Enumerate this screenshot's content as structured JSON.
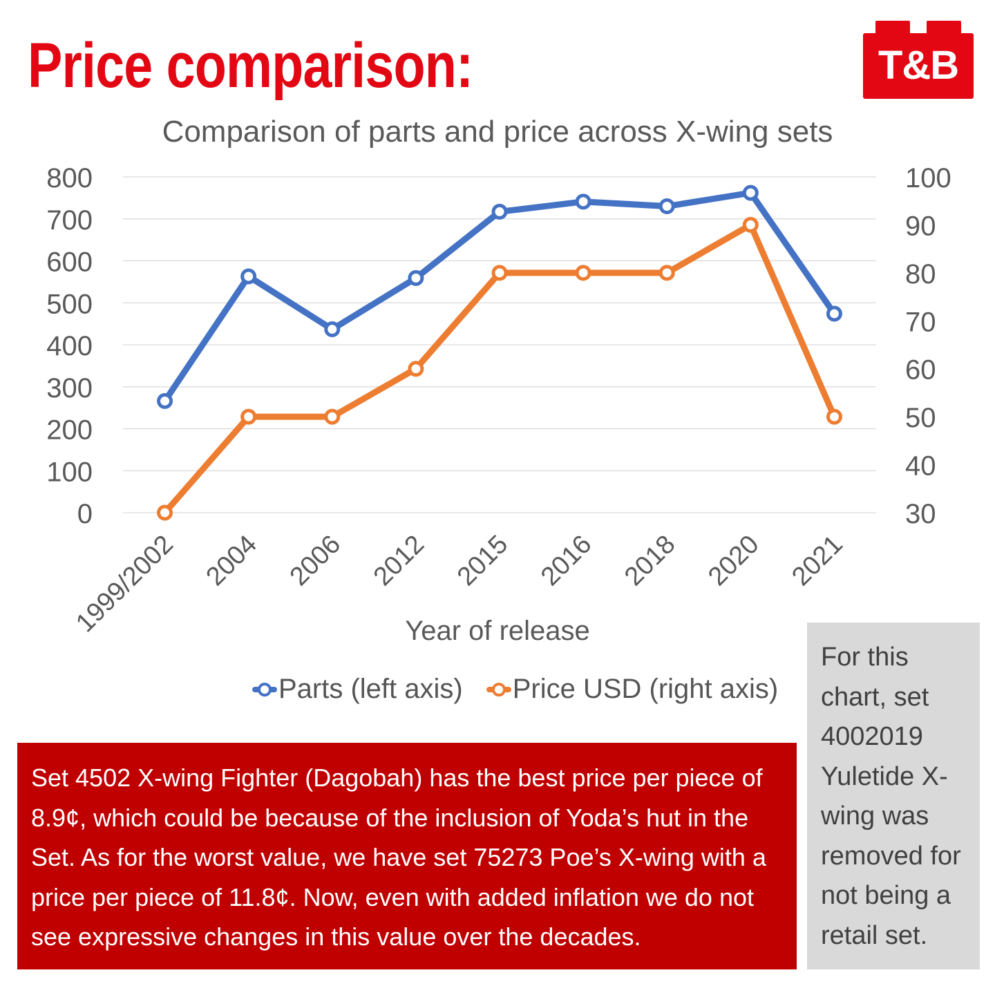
{
  "headline": "Price comparison:",
  "logo_text": "T&B",
  "chart_data": {
    "type": "line",
    "title": "Comparison of parts and price across X-wing sets",
    "xlabel": "Year of release",
    "ylabel": "",
    "y2label": "",
    "categories": [
      "1999/2002",
      "2004",
      "2006",
      "2012",
      "2015",
      "2016",
      "2018",
      "2020",
      "2021"
    ],
    "series": [
      {
        "name": "Parts (left axis)",
        "axis": "left",
        "color": "#4472c4",
        "values": [
          266,
          563,
          437,
          559,
          717,
          741,
          730,
          762,
          474
        ]
      },
      {
        "name": "Price USD (right axis)",
        "axis": "right",
        "color": "#ed7d31",
        "values": [
          30,
          50,
          50,
          60,
          80,
          80,
          80,
          90,
          50
        ]
      }
    ],
    "ylim": [
      0,
      800
    ],
    "y_ticks": [
      "0",
      "100",
      "200",
      "300",
      "400",
      "500",
      "600",
      "700",
      "800"
    ],
    "y2lim": [
      30,
      100
    ],
    "y2_ticks": [
      "30",
      "40",
      "50",
      "60",
      "70",
      "80",
      "90",
      "100"
    ],
    "grid": true,
    "legend_position": "bottom"
  },
  "note_main": "Set 4502 X-wing Fighter (Dagobah) has the best price per piece of 8.9¢, which could be because of the inclusion of Yoda’s hut in the Set. As for the worst value, we have set 75273 Poe’s X-wing with a price per piece of 11.8¢. Now, even with added inflation we do not see expressive changes in this value over the decades.",
  "note_side": "For this chart, set 4002019 Yuletide X-wing was removed for not being a retail set.",
  "colors": {
    "brand_red": "#e30613",
    "note_red": "#c00000",
    "note_gray": "#d9d9d9",
    "parts_blue": "#4472c4",
    "price_orange": "#ed7d31"
  }
}
